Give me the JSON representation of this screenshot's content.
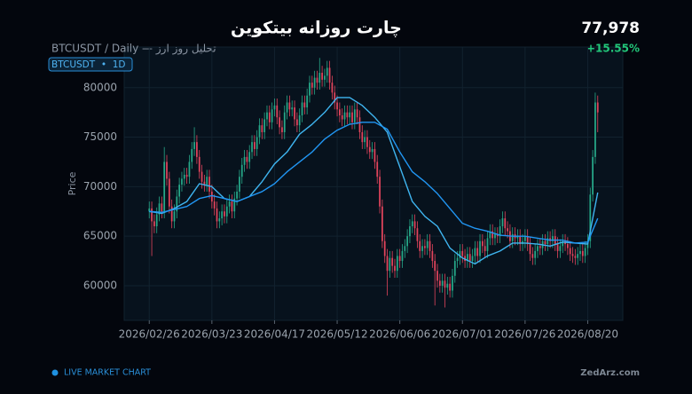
{
  "chart_data": {
    "type": "candlestick",
    "title": "چارت روزانه بیتکوین",
    "subtitle": "BTCUSDT / Daily — تحلیل روز ارز",
    "badge": "BTCUSDT  •  1D",
    "price": "77,978",
    "change": "+15.55%",
    "y_label": "Price",
    "footer": "LIVE MARKET CHART",
    "site": "ZedArz.com",
    "up_color": "#26a889",
    "down_color": "#e2445c",
    "grid": true,
    "xlim": [
      -10,
      189
    ],
    "ylim": [
      56500,
      84100
    ],
    "yticks": [
      60000,
      65000,
      70000,
      75000,
      80000
    ],
    "xticks": [
      {
        "value": 0,
        "label": "2026/02/26"
      },
      {
        "value": 25,
        "label": "2026/03/23"
      },
      {
        "value": 50,
        "label": "2026/04/17"
      },
      {
        "value": 75,
        "label": "2026/05/12"
      },
      {
        "value": 100,
        "label": "2026/06/06"
      },
      {
        "value": 125,
        "label": "2026/07/01"
      },
      {
        "value": 150,
        "label": "2026/07/26"
      },
      {
        "value": 175,
        "label": "2026/08/20"
      }
    ],
    "x": [
      0,
      1,
      2,
      3,
      4,
      5,
      6,
      7,
      8,
      9,
      10,
      11,
      12,
      13,
      14,
      15,
      16,
      17,
      18,
      19,
      20,
      21,
      22,
      23,
      24,
      25,
      26,
      27,
      28,
      29,
      30,
      31,
      32,
      33,
      34,
      35,
      36,
      37,
      38,
      39,
      40,
      41,
      42,
      43,
      44,
      45,
      46,
      47,
      48,
      49,
      50,
      51,
      52,
      53,
      54,
      55,
      56,
      57,
      58,
      59,
      60,
      61,
      62,
      63,
      64,
      65,
      66,
      67,
      68,
      69,
      70,
      71,
      72,
      73,
      74,
      75,
      76,
      77,
      78,
      79,
      80,
      81,
      82,
      83,
      84,
      85,
      86,
      87,
      88,
      89,
      90,
      91,
      92,
      93,
      94,
      95,
      96,
      97,
      98,
      99,
      100,
      101,
      102,
      103,
      104,
      105,
      106,
      107,
      108,
      109,
      110,
      111,
      112,
      113,
      114,
      115,
      116,
      117,
      118,
      119,
      120,
      121,
      122,
      123,
      124,
      125,
      126,
      127,
      128,
      129,
      130,
      131,
      132,
      133,
      134,
      135,
      136,
      137,
      138,
      139,
      140,
      141,
      142,
      143,
      144,
      145,
      146,
      147,
      148,
      149,
      150,
      151,
      152,
      153,
      154,
      155,
      156,
      157,
      158,
      159,
      160,
      161,
      162,
      163,
      164,
      165,
      166,
      167,
      168,
      169,
      170,
      171,
      172,
      173,
      174,
      175,
      176,
      177,
      178,
      179
    ],
    "open": [
      67500,
      67800,
      66500,
      66000,
      67200,
      68300,
      67500,
      72500,
      70800,
      68000,
      66500,
      67500,
      69000,
      70200,
      70800,
      71200,
      71000,
      72500,
      73800,
      74500,
      73000,
      71500,
      70500,
      70200,
      71000,
      69500,
      68500,
      67800,
      66500,
      66800,
      67500,
      67000,
      68000,
      68500,
      67500,
      68800,
      69500,
      71000,
      72200,
      73000,
      72500,
      73500,
      74500,
      73800,
      75000,
      76200,
      75500,
      76800,
      77500,
      76500,
      77800,
      78200,
      77000,
      76000,
      75500,
      77500,
      78500,
      77800,
      78000,
      76800,
      76200,
      77200,
      78500,
      78000,
      79200,
      80500,
      80000,
      81000,
      80500,
      81500,
      80800,
      81200,
      82000,
      80500,
      79500,
      78500,
      77800,
      77200,
      76800,
      77500,
      77000,
      77500,
      76500,
      77800,
      77000,
      75500,
      74500,
      75000,
      74000,
      73500,
      73800,
      72500,
      71000,
      68000,
      64500,
      63000,
      61500,
      62800,
      62000,
      61500,
      63000,
      62500,
      63500,
      64000,
      65000,
      66000,
      66500,
      65800,
      64500,
      63500,
      64000,
      63800,
      64500,
      63500,
      62500,
      61500,
      60500,
      60000,
      60500,
      59800,
      60200,
      59500,
      61000,
      62500,
      62800,
      63500,
      63000,
      62500,
      63200,
      62500,
      63000,
      63800,
      63000,
      64500,
      64000,
      63500,
      64800,
      65500,
      64800,
      65200,
      65000,
      66000,
      66800,
      65800,
      65500,
      64500,
      65200,
      64800,
      65000,
      64200,
      64500,
      65000,
      64200,
      63200,
      62800,
      63500,
      64000,
      63800,
      64500,
      64200,
      64800,
      64500,
      65000,
      64200,
      63500,
      64000,
      64500,
      64200,
      63800,
      63200,
      63000,
      62800,
      63200,
      63500,
      63000,
      63800,
      64500,
      69200,
      73000,
      78500
    ],
    "high": [
      68500,
      68500,
      67200,
      67900,
      69000,
      69000,
      74000,
      73200,
      71500,
      68700,
      68200,
      69700,
      70900,
      71500,
      71900,
      71900,
      73200,
      74500,
      76000,
      75200,
      73700,
      72200,
      71200,
      71700,
      71700,
      70200,
      69200,
      68500,
      67500,
      68200,
      68200,
      68700,
      69200,
      69200,
      69500,
      70200,
      71700,
      72900,
      73700,
      73700,
      74200,
      75200,
      75200,
      75700,
      76900,
      76900,
      77500,
      78200,
      78200,
      78500,
      78900,
      78900,
      77700,
      76700,
      78200,
      79200,
      79200,
      78700,
      78700,
      77500,
      77900,
      79200,
      79200,
      79900,
      81200,
      81200,
      81700,
      81700,
      83000,
      82200,
      81900,
      82700,
      82700,
      81200,
      80200,
      79200,
      78500,
      77900,
      78200,
      78200,
      78200,
      78200,
      78500,
      78500,
      77700,
      76200,
      75700,
      75700,
      74700,
      74500,
      74500,
      73200,
      71700,
      68700,
      65200,
      63700,
      63500,
      63500,
      62700,
      63700,
      63700,
      64200,
      64700,
      65700,
      66700,
      67200,
      67200,
      66500,
      65200,
      64700,
      64700,
      65200,
      65200,
      64200,
      63200,
      62200,
      61200,
      61200,
      61200,
      60900,
      60900,
      61700,
      63200,
      63500,
      64200,
      64200,
      63700,
      63900,
      63900,
      63700,
      64500,
      64500,
      65200,
      65200,
      64700,
      65500,
      66200,
      66200,
      65900,
      65900,
      66700,
      67500,
      67500,
      66500,
      66200,
      65900,
      65900,
      65700,
      65700,
      65200,
      65700,
      65700,
      64900,
      63900,
      64200,
      64700,
      64700,
      65200,
      65200,
      65500,
      65500,
      65700,
      65700,
      64900,
      64700,
      65200,
      65200,
      64900,
      64500,
      63900,
      63700,
      63900,
      64200,
      64200,
      64500,
      65200,
      69900,
      73700,
      79500,
      79200
    ],
    "low": [
      66800,
      63000,
      65300,
      65300,
      66500,
      66800,
      66800,
      70100,
      67300,
      65800,
      65800,
      66800,
      68300,
      69500,
      70100,
      70300,
      70300,
      71800,
      73100,
      72300,
      70800,
      69800,
      69500,
      69500,
      68800,
      67800,
      67100,
      65800,
      65800,
      66100,
      66300,
      66300,
      67300,
      66800,
      66800,
      68100,
      68800,
      70300,
      71500,
      71800,
      71800,
      72800,
      73100,
      73100,
      74300,
      74800,
      74800,
      76100,
      75800,
      75800,
      77100,
      76300,
      75300,
      74800,
      74800,
      76800,
      77100,
      77100,
      76100,
      75500,
      75500,
      76500,
      77300,
      77300,
      78500,
      79300,
      79300,
      79800,
      79800,
      80100,
      80100,
      80500,
      79800,
      78800,
      77800,
      77100,
      76500,
      76100,
      76100,
      76300,
      76300,
      75800,
      75800,
      76300,
      74800,
      73800,
      73800,
      73300,
      72800,
      72800,
      71800,
      70300,
      67300,
      63800,
      62300,
      59000,
      60800,
      61300,
      60800,
      60800,
      61800,
      61800,
      62800,
      63300,
      64300,
      65300,
      65100,
      63800,
      62800,
      62800,
      63100,
      63100,
      62800,
      61800,
      58000,
      59800,
      59300,
      59300,
      57800,
      59100,
      58800,
      58800,
      60300,
      61800,
      62100,
      62300,
      61800,
      61800,
      61800,
      61800,
      62300,
      62300,
      62300,
      63300,
      62800,
      62800,
      64100,
      64100,
      64100,
      64300,
      64300,
      65300,
      65100,
      64800,
      63800,
      63800,
      64100,
      64100,
      63500,
      63500,
      63800,
      63500,
      62500,
      62100,
      62100,
      62800,
      63100,
      63100,
      63500,
      63500,
      63800,
      63800,
      63500,
      62800,
      62800,
      63300,
      63500,
      63100,
      62500,
      62300,
      62100,
      62100,
      62500,
      62300,
      62300,
      63100,
      63800,
      68500,
      72300,
      75500
    ],
    "close": [
      67800,
      66500,
      66000,
      67200,
      68300,
      67500,
      72500,
      70800,
      68000,
      66500,
      67500,
      69000,
      70200,
      70800,
      71200,
      71000,
      72500,
      73800,
      74500,
      73000,
      71500,
      70500,
      70200,
      71000,
      69500,
      68500,
      67800,
      66500,
      66800,
      67500,
      67000,
      68000,
      68500,
      67500,
      68800,
      69500,
      71000,
      72200,
      73000,
      72500,
      73500,
      74500,
      73800,
      75000,
      76200,
      75500,
      76800,
      77500,
      76500,
      77800,
      78200,
      77000,
      76000,
      75500,
      77500,
      78500,
      77800,
      78000,
      76800,
      76200,
      77200,
      78500,
      78000,
      79200,
      80500,
      80000,
      81000,
      80500,
      81500,
      80800,
      81200,
      82000,
      80500,
      79500,
      78500,
      77800,
      77200,
      76800,
      77500,
      77000,
      77500,
      76500,
      77800,
      77000,
      75500,
      74500,
      75000,
      74000,
      73500,
      73800,
      72500,
      71000,
      68000,
      64500,
      63000,
      61500,
      62800,
      62000,
      61500,
      63000,
      62500,
      63500,
      64000,
      65000,
      66000,
      66500,
      65800,
      64500,
      63500,
      64000,
      63800,
      64500,
      63500,
      62500,
      61500,
      60500,
      60000,
      60500,
      59800,
      60200,
      59500,
      61000,
      62500,
      62800,
      63500,
      63000,
      62500,
      63200,
      62500,
      63000,
      63800,
      63000,
      64500,
      64000,
      63500,
      64800,
      65500,
      64800,
      65200,
      65000,
      66000,
      66800,
      65800,
      65500,
      64500,
      65200,
      64800,
      65000,
      64200,
      64500,
      65000,
      64200,
      63200,
      62800,
      63500,
      64000,
      63800,
      64500,
      64200,
      64800,
      64500,
      65000,
      64200,
      63500,
      64000,
      64500,
      64200,
      63800,
      63200,
      63000,
      62800,
      63200,
      63500,
      63000,
      63800,
      64500,
      69200,
      73000,
      78500,
      77500
    ],
    "series": [
      {
        "color": "#3fb5f0",
        "x": [
          0,
          5,
          10,
          15,
          20,
          25,
          30,
          35,
          40,
          45,
          50,
          55,
          60,
          65,
          70,
          75,
          80,
          85,
          90,
          95,
          100,
          105,
          110,
          115,
          120,
          125,
          130,
          135,
          140,
          145,
          150,
          155,
          160,
          165,
          170,
          175,
          179
        ],
        "values": [
          67500,
          67300,
          67800,
          68500,
          70300,
          70000,
          68800,
          68500,
          69000,
          70500,
          72300,
          73500,
          75300,
          76300,
          77500,
          79000,
          79000,
          78200,
          77000,
          75500,
          72000,
          68500,
          67000,
          66000,
          63800,
          62800,
          62200,
          63000,
          63500,
          64300,
          64300,
          64200,
          64000,
          64400,
          64300,
          64200,
          69400
        ]
      },
      {
        "color": "#2196f3",
        "x": [
          0,
          5,
          10,
          15,
          20,
          25,
          30,
          35,
          40,
          45,
          50,
          55,
          60,
          65,
          70,
          75,
          80,
          85,
          90,
          95,
          100,
          105,
          110,
          115,
          120,
          125,
          130,
          135,
          140,
          145,
          150,
          155,
          160,
          165,
          170,
          175,
          179
        ],
        "values": [
          67500,
          67400,
          67700,
          68000,
          68800,
          69100,
          68800,
          68500,
          69000,
          69500,
          70300,
          71500,
          72500,
          73500,
          74800,
          75700,
          76300,
          76500,
          76500,
          75800,
          73500,
          71500,
          70500,
          69300,
          67800,
          66300,
          65800,
          65500,
          65100,
          65000,
          65000,
          64800,
          64600,
          64600,
          64300,
          64400,
          66800
        ]
      }
    ]
  }
}
